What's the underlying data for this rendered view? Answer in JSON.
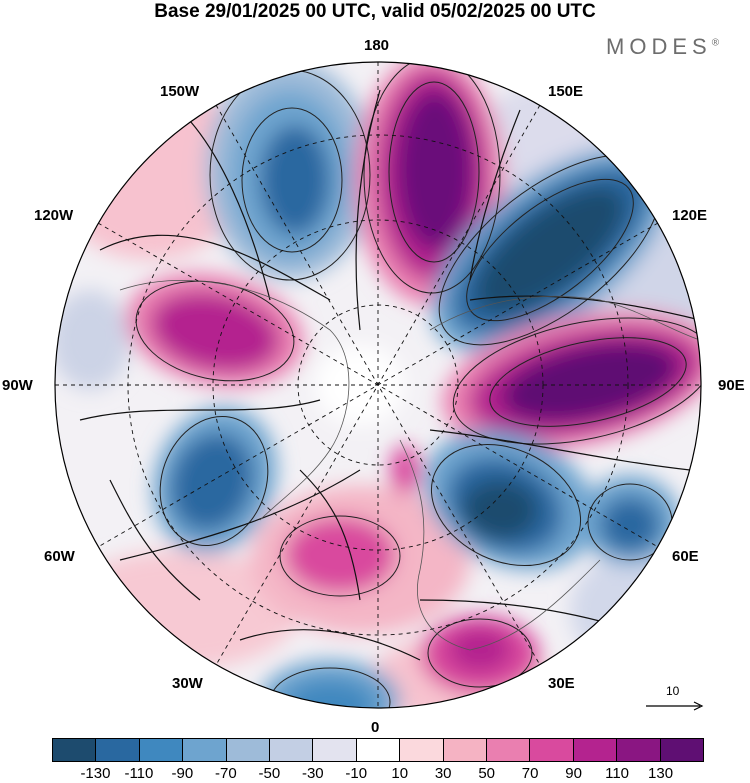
{
  "title": "Base 29/01/2025 00 UTC, valid 05/02/2025 00 UTC",
  "brand": "MODES",
  "brand_mark": "®",
  "longitude_labels": {
    "n180": "180",
    "e150": "150E",
    "e120": "120E",
    "e90": "90E",
    "e60": "60E",
    "e30": "30E",
    "zero": "0",
    "w30": "30W",
    "w60": "60W",
    "w90": "90W",
    "w120": "120W",
    "w150": "150W"
  },
  "reference_vector": {
    "value": "10",
    "icon": "arrow-right-icon"
  },
  "colorbar": {
    "colors": [
      "#1d4b6e",
      "#2968a0",
      "#3f88bf",
      "#6ea4cf",
      "#9ebbd9",
      "#c3cfe4",
      "#e3e3ef",
      "#ffffff",
      "#fbd9dd",
      "#f5b3c3",
      "#ea7fb0",
      "#d94a9e",
      "#b4238f",
      "#8a1682",
      "#5f0f73"
    ],
    "tick_labels": [
      "-130",
      "-110",
      "-90",
      "-70",
      "-50",
      "-30",
      "-10",
      "10",
      "30",
      "50",
      "70",
      "90",
      "110",
      "130"
    ]
  }
}
